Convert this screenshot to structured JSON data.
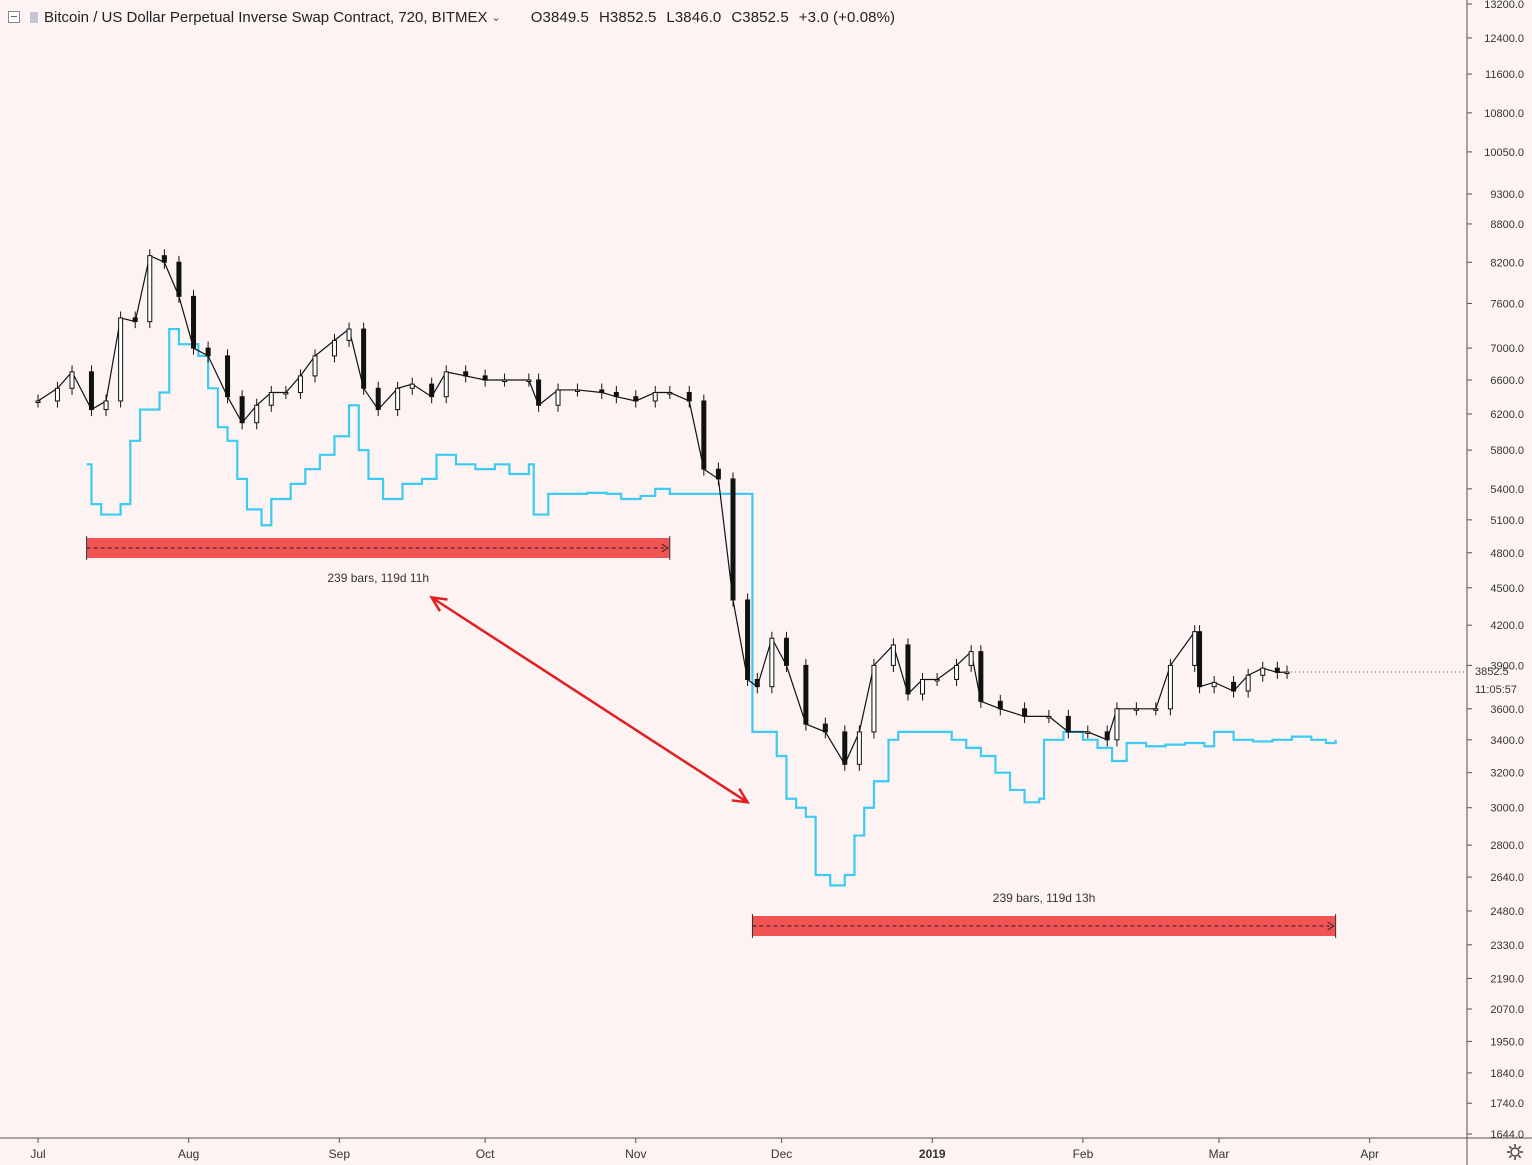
{
  "header": {
    "title": "Bitcoin / US Dollar Perpetual Inverse Swap Contract, 720, BITMEX",
    "open": "O3849.5",
    "high": "H3852.5",
    "low": "L3846.0",
    "close": "C3852.5",
    "change": "+3.0 (+0.08%)"
  },
  "last_price_label": "3852.5",
  "countdown_label": "11:05:57",
  "colors": {
    "background": "#fdf3f3",
    "candle": "#111111",
    "overlay": "#3dcbf2",
    "range_box": "#f25353",
    "arrow": "#e02020"
  },
  "measure_1": {
    "label": "239 bars, 119d 11h"
  },
  "measure_2": {
    "label": "239 bars, 119d 13h"
  },
  "chart_data": {
    "type": "line",
    "symbol": "XBTUSD",
    "exchange": "BITMEX",
    "interval": "720",
    "y_scale": "log",
    "ylim": [
      1644,
      13200
    ],
    "y_ticks": [
      "13200.0",
      "12400.0",
      "11600.0",
      "10800.0",
      "10050.0",
      "9300.0",
      "8800.0",
      "8200.0",
      "7600.0",
      "7000.0",
      "6600.0",
      "6200.0",
      "5800.0",
      "5400.0",
      "5100.0",
      "4800.0",
      "4500.0",
      "4200.0",
      "3900.0",
      "3600.0",
      "3400.0",
      "3200.0",
      "3000.0",
      "2800.0",
      "2640.0",
      "2480.0",
      "2330.0",
      "2190.0",
      "2070.0",
      "1950.0",
      "1840.0",
      "1740.0",
      "1644.0"
    ],
    "x_ticks": [
      "Jul",
      "Aug",
      "Sep",
      "Oct",
      "Nov",
      "Dec",
      "2019",
      "Feb",
      "Mar",
      "Apr"
    ],
    "series": [
      {
        "style": "candles",
        "points": [
          [
            "2018-07-01",
            6350
          ],
          [
            "2018-07-05",
            6500
          ],
          [
            "2018-07-08",
            6700
          ],
          [
            "2018-07-12",
            6250
          ],
          [
            "2018-07-15",
            6350
          ],
          [
            "2018-07-18",
            7400
          ],
          [
            "2018-07-21",
            7350
          ],
          [
            "2018-07-24",
            8300
          ],
          [
            "2018-07-27",
            8200
          ],
          [
            "2018-07-30",
            7700
          ],
          [
            "2018-08-02",
            7000
          ],
          [
            "2018-08-05",
            6900
          ],
          [
            "2018-08-09",
            6400
          ],
          [
            "2018-08-12",
            6100
          ],
          [
            "2018-08-15",
            6300
          ],
          [
            "2018-08-18",
            6450
          ],
          [
            "2018-08-21",
            6450
          ],
          [
            "2018-08-24",
            6650
          ],
          [
            "2018-08-27",
            6900
          ],
          [
            "2018-08-31",
            7100
          ],
          [
            "2018-09-03",
            7250
          ],
          [
            "2018-09-06",
            6500
          ],
          [
            "2018-09-09",
            6250
          ],
          [
            "2018-09-13",
            6500
          ],
          [
            "2018-09-16",
            6550
          ],
          [
            "2018-09-20",
            6400
          ],
          [
            "2018-09-23",
            6700
          ],
          [
            "2018-09-27",
            6650
          ],
          [
            "2018-10-01",
            6600
          ],
          [
            "2018-10-05",
            6600
          ],
          [
            "2018-10-10",
            6600
          ],
          [
            "2018-10-12",
            6300
          ],
          [
            "2018-10-16",
            6480
          ],
          [
            "2018-10-20",
            6480
          ],
          [
            "2018-10-25",
            6450
          ],
          [
            "2018-10-28",
            6400
          ],
          [
            "2018-11-01",
            6350
          ],
          [
            "2018-11-05",
            6450
          ],
          [
            "2018-11-08",
            6450
          ],
          [
            "2018-11-12",
            6350
          ],
          [
            "2018-11-15",
            5600
          ],
          [
            "2018-11-18",
            5500
          ],
          [
            "2018-11-21",
            4400
          ],
          [
            "2018-11-24",
            3800
          ],
          [
            "2018-11-26",
            3750
          ],
          [
            "2018-11-29",
            4100
          ],
          [
            "2018-12-02",
            3900
          ],
          [
            "2018-12-06",
            3500
          ],
          [
            "2018-12-10",
            3450
          ],
          [
            "2018-12-14",
            3250
          ],
          [
            "2018-12-17",
            3450
          ],
          [
            "2018-12-20",
            3900
          ],
          [
            "2018-12-24",
            4050
          ],
          [
            "2018-12-27",
            3700
          ],
          [
            "2018-12-30",
            3800
          ],
          [
            "2019-01-02",
            3800
          ],
          [
            "2019-01-06",
            3900
          ],
          [
            "2019-01-09",
            4000
          ],
          [
            "2019-01-11",
            3650
          ],
          [
            "2019-01-15",
            3600
          ],
          [
            "2019-01-20",
            3550
          ],
          [
            "2019-01-25",
            3550
          ],
          [
            "2019-01-29",
            3450
          ],
          [
            "2019-02-02",
            3450
          ],
          [
            "2019-02-06",
            3400
          ],
          [
            "2019-02-08",
            3600
          ],
          [
            "2019-02-12",
            3600
          ],
          [
            "2019-02-16",
            3600
          ],
          [
            "2019-02-19",
            3900
          ],
          [
            "2019-02-24",
            4150
          ],
          [
            "2019-02-25",
            3750
          ],
          [
            "2019-02-28",
            3780
          ],
          [
            "2019-03-04",
            3720
          ],
          [
            "2019-03-07",
            3830
          ],
          [
            "2019-03-10",
            3880
          ],
          [
            "2019-03-13",
            3850
          ],
          [
            "2019-03-15",
            3852.5
          ]
        ]
      },
      {
        "style": "step",
        "points": [
          [
            "2018-07-11",
            5650
          ],
          [
            "2018-07-12",
            5250
          ],
          [
            "2018-07-14",
            5150
          ],
          [
            "2018-07-18",
            5250
          ],
          [
            "2018-07-20",
            5900
          ],
          [
            "2018-07-22",
            6250
          ],
          [
            "2018-07-26",
            6450
          ],
          [
            "2018-07-28",
            7250
          ],
          [
            "2018-07-30",
            7050
          ],
          [
            "2018-08-03",
            6900
          ],
          [
            "2018-08-05",
            6500
          ],
          [
            "2018-08-07",
            6050
          ],
          [
            "2018-08-09",
            5900
          ],
          [
            "2018-08-11",
            5500
          ],
          [
            "2018-08-13",
            5200
          ],
          [
            "2018-08-16",
            5050
          ],
          [
            "2018-08-18",
            5300
          ],
          [
            "2018-08-22",
            5450
          ],
          [
            "2018-08-25",
            5600
          ],
          [
            "2018-08-28",
            5750
          ],
          [
            "2018-08-31",
            5950
          ],
          [
            "2018-09-03",
            6300
          ],
          [
            "2018-09-05",
            5800
          ],
          [
            "2018-09-07",
            5500
          ],
          [
            "2018-09-10",
            5300
          ],
          [
            "2018-09-14",
            5450
          ],
          [
            "2018-09-18",
            5500
          ],
          [
            "2018-09-21",
            5750
          ],
          [
            "2018-09-25",
            5650
          ],
          [
            "2018-09-29",
            5600
          ],
          [
            "2018-10-03",
            5650
          ],
          [
            "2018-10-06",
            5550
          ],
          [
            "2018-10-10",
            5650
          ],
          [
            "2018-10-11",
            5150
          ],
          [
            "2018-10-14",
            5350
          ],
          [
            "2018-10-18",
            5350
          ],
          [
            "2018-10-22",
            5360
          ],
          [
            "2018-10-26",
            5350
          ],
          [
            "2018-10-29",
            5300
          ],
          [
            "2018-11-02",
            5330
          ],
          [
            "2018-11-05",
            5400
          ],
          [
            "2018-11-08",
            5350
          ],
          [
            "2018-11-25",
            3450
          ],
          [
            "2018-11-26",
            3450
          ],
          [
            "2018-11-30",
            3300
          ],
          [
            "2018-12-02",
            3050
          ],
          [
            "2018-12-04",
            3000
          ],
          [
            "2018-12-06",
            2950
          ],
          [
            "2018-12-08",
            2650
          ],
          [
            "2018-12-11",
            2600
          ],
          [
            "2018-12-14",
            2650
          ],
          [
            "2018-12-16",
            2850
          ],
          [
            "2018-12-18",
            3000
          ],
          [
            "2018-12-20",
            3150
          ],
          [
            "2018-12-23",
            3400
          ],
          [
            "2018-12-25",
            3450
          ],
          [
            "2018-12-28",
            3450
          ],
          [
            "2019-01-02",
            3450
          ],
          [
            "2019-01-05",
            3400
          ],
          [
            "2019-01-08",
            3350
          ],
          [
            "2019-01-11",
            3300
          ],
          [
            "2019-01-14",
            3200
          ],
          [
            "2019-01-17",
            3100
          ],
          [
            "2019-01-20",
            3030
          ],
          [
            "2019-01-23",
            3050
          ],
          [
            "2019-01-24",
            3400
          ],
          [
            "2019-01-28",
            3450
          ],
          [
            "2019-02-01",
            3400
          ],
          [
            "2019-02-04",
            3350
          ],
          [
            "2019-02-07",
            3270
          ],
          [
            "2019-02-10",
            3380
          ],
          [
            "2019-02-14",
            3360
          ],
          [
            "2019-02-18",
            3370
          ],
          [
            "2019-02-22",
            3380
          ],
          [
            "2019-02-26",
            3360
          ],
          [
            "2019-02-28",
            3450
          ],
          [
            "2019-03-04",
            3400
          ],
          [
            "2019-03-08",
            3390
          ],
          [
            "2019-03-12",
            3400
          ],
          [
            "2019-03-16",
            3420
          ],
          [
            "2019-03-20",
            3400
          ],
          [
            "2019-03-23",
            3380
          ],
          [
            "2019-03-25",
            3400
          ]
        ]
      }
    ],
    "annotations": [
      {
        "type": "date_range",
        "start": "2018-07-11",
        "end": "2018-11-08",
        "bars": 239,
        "label": "239 bars, 119d 11h"
      },
      {
        "type": "date_range",
        "start": "2018-11-25",
        "end": "2019-03-25",
        "bars": 239,
        "label": "239 bars, 119d 13h"
      },
      {
        "type": "double_arrow",
        "from": [
          "2018-09-20",
          4420
        ],
        "to": [
          "2018-11-24",
          3030
        ]
      }
    ]
  }
}
